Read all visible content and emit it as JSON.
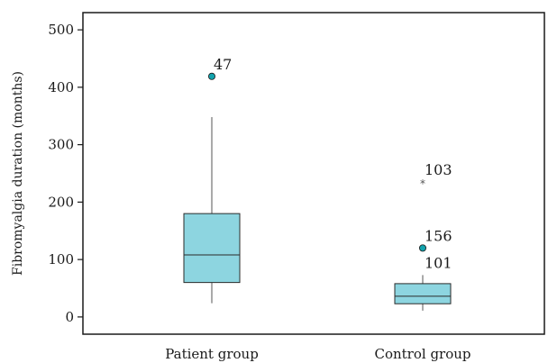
{
  "chart_data": {
    "type": "boxplot",
    "ylabel": "Fibromyalgia duration (months)",
    "ylim": [
      -30,
      530
    ],
    "yticks": [
      0,
      100,
      200,
      300,
      400,
      500
    ],
    "yticklabels": [
      "0",
      "100",
      "200",
      "300",
      "400",
      "500"
    ],
    "categories": [
      "Patient group",
      "Control group"
    ],
    "box_color": "#8dd5e0",
    "outlier_color": "#12a3ad",
    "boxes": [
      {
        "category": "Patient group",
        "whisker_low": 24,
        "q1": 60,
        "median": 108,
        "q3": 180,
        "whisker_high": 348,
        "outliers": [
          {
            "value": 419,
            "label": "47",
            "marker": "circle"
          }
        ]
      },
      {
        "category": "Control group",
        "whisker_low": 11,
        "q1": 23,
        "median": 36,
        "q3": 58,
        "whisker_high": 73,
        "outliers": [
          {
            "value": 120,
            "label": "156",
            "marker": "circle"
          },
          {
            "value": 235,
            "label": "103",
            "marker": "star"
          },
          {
            "value": 73,
            "label": "101",
            "marker": "none"
          }
        ]
      }
    ]
  }
}
